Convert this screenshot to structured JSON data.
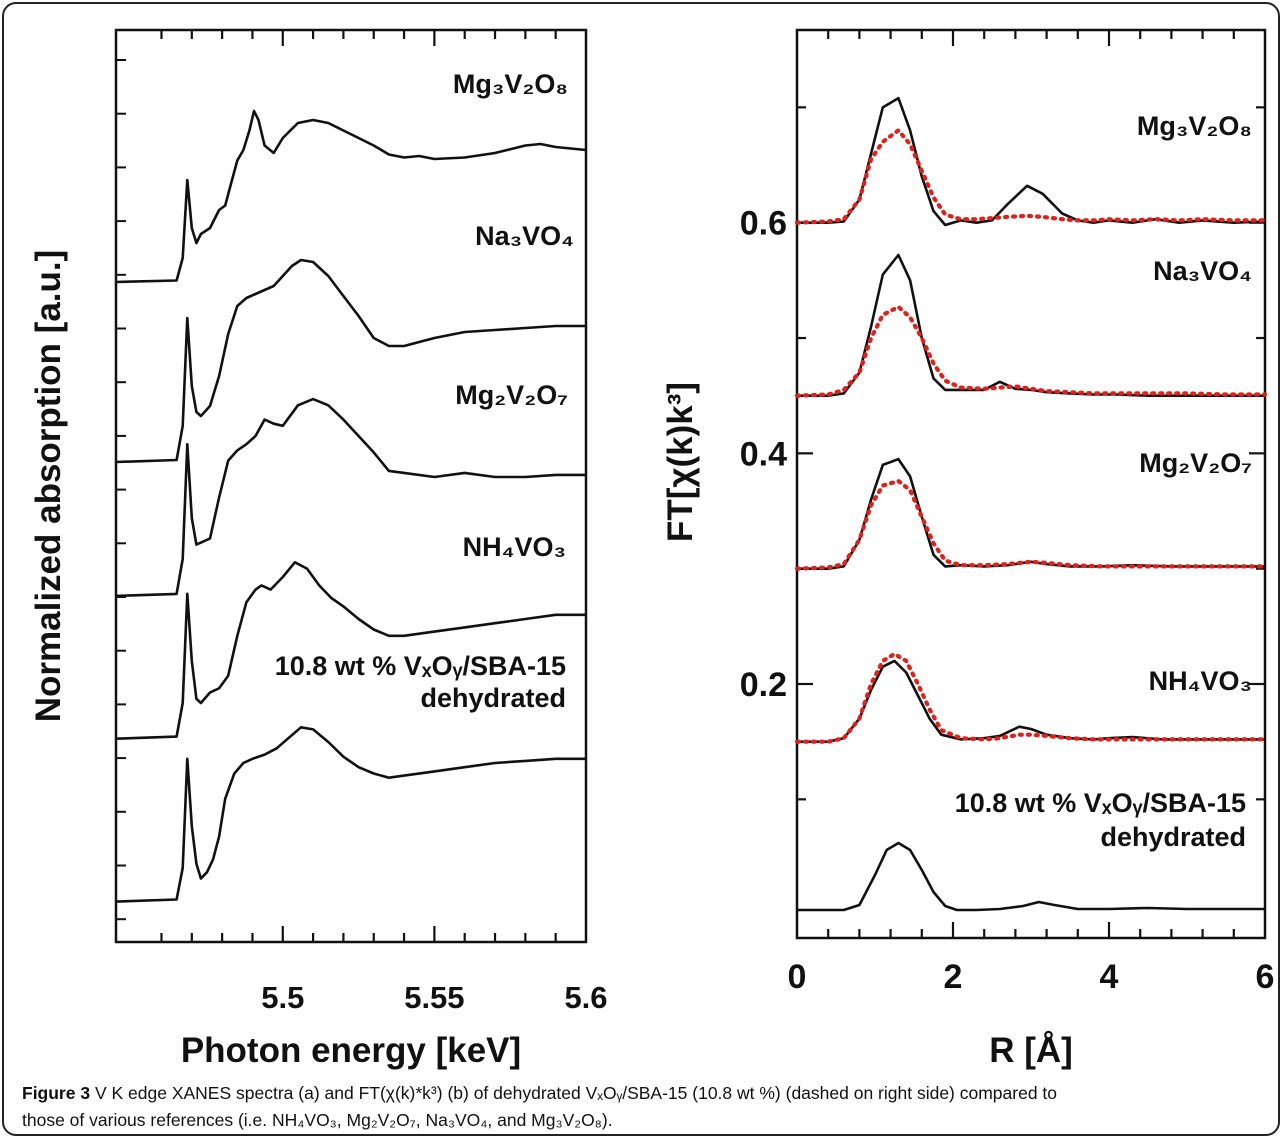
{
  "figure": {
    "caption_lead": "Figure 3",
    "caption_line1": "V K edge XANES spectra (a) and FT(χ(k)*k³) (b) of dehydrated VₓOᵧ/SBA-15 (10.8 wt %) (dashed on right side) compared to",
    "caption_line2": "those of various references (i.e. NH₄VO₃, Mg₂V₂O₇, Na₃VO₄, and Mg₃V₂O₈)."
  },
  "chart_data": [
    {
      "type": "line",
      "panel": "a",
      "xlabel": "Photon energy [keV]",
      "ylabel": "Normalized absorption [a.u.]",
      "xlim": [
        5.445,
        5.6
      ],
      "x_ticks": [
        "5.5",
        "5.55",
        "5.6"
      ],
      "x_tick_values": [
        5.5,
        5.55,
        5.6
      ],
      "y_tick_labels": false,
      "grid": false,
      "legend": "none",
      "series": [
        {
          "label": "Mg₃V₂O₈",
          "x": [
            5.445,
            5.465,
            5.467,
            5.4685,
            5.47,
            5.4715,
            5.473,
            5.476,
            5.479,
            5.481,
            5.483,
            5.485,
            5.487,
            5.489,
            5.4905,
            5.492,
            5.494,
            5.497,
            5.5,
            5.505,
            5.51,
            5.515,
            5.52,
            5.525,
            5.53,
            5.535,
            5.54,
            5.545,
            5.55,
            5.56,
            5.57,
            5.58,
            5.585,
            5.59,
            5.595,
            5.6
          ],
          "y": [
            0.04,
            0.05,
            0.2,
            0.72,
            0.4,
            0.3,
            0.36,
            0.4,
            0.52,
            0.55,
            0.7,
            0.85,
            0.92,
            1.05,
            1.18,
            1.12,
            0.95,
            0.9,
            1.0,
            1.1,
            1.12,
            1.1,
            1.05,
            1.0,
            0.95,
            0.89,
            0.87,
            0.88,
            0.86,
            0.87,
            0.9,
            0.95,
            0.96,
            0.94,
            0.93,
            0.92
          ]
        },
        {
          "label": "Na₃VO₄",
          "x": [
            5.445,
            5.465,
            5.467,
            5.4685,
            5.47,
            5.4715,
            5.473,
            5.476,
            5.479,
            5.482,
            5.485,
            5.488,
            5.491,
            5.494,
            5.497,
            5.5,
            5.503,
            5.506,
            5.51,
            5.515,
            5.52,
            5.525,
            5.53,
            5.535,
            5.54,
            5.55,
            5.56,
            5.57,
            5.58,
            5.59,
            5.6
          ],
          "y": [
            0.02,
            0.03,
            0.2,
            0.74,
            0.4,
            0.27,
            0.25,
            0.3,
            0.45,
            0.66,
            0.8,
            0.84,
            0.86,
            0.88,
            0.9,
            0.95,
            1.0,
            1.03,
            1.02,
            0.95,
            0.85,
            0.75,
            0.64,
            0.6,
            0.6,
            0.64,
            0.67,
            0.68,
            0.69,
            0.7,
            0.7
          ]
        },
        {
          "label": "Mg₂V₂O₇",
          "x": [
            5.445,
            5.465,
            5.467,
            5.4685,
            5.47,
            5.4715,
            5.473,
            5.476,
            5.479,
            5.482,
            5.485,
            5.488,
            5.491,
            5.494,
            5.497,
            5.5,
            5.505,
            5.51,
            5.515,
            5.52,
            5.525,
            5.53,
            5.535,
            5.54,
            5.55,
            5.56,
            5.57,
            5.58,
            5.59,
            5.6
          ],
          "y": [
            0.02,
            0.03,
            0.2,
            0.76,
            0.4,
            0.27,
            0.28,
            0.3,
            0.5,
            0.68,
            0.73,
            0.76,
            0.8,
            0.88,
            0.86,
            0.85,
            0.95,
            0.98,
            0.95,
            0.88,
            0.8,
            0.72,
            0.63,
            0.62,
            0.6,
            0.62,
            0.6,
            0.6,
            0.61,
            0.61
          ]
        },
        {
          "label": "NH₄VO₃",
          "x": [
            5.445,
            5.465,
            5.467,
            5.4685,
            5.47,
            5.4715,
            5.473,
            5.476,
            5.479,
            5.482,
            5.485,
            5.488,
            5.491,
            5.493,
            5.496,
            5.5,
            5.504,
            5.508,
            5.512,
            5.516,
            5.52,
            5.525,
            5.53,
            5.535,
            5.54,
            5.55,
            5.56,
            5.57,
            5.58,
            5.59,
            5.6
          ],
          "y": [
            0.03,
            0.04,
            0.2,
            0.72,
            0.4,
            0.22,
            0.2,
            0.25,
            0.27,
            0.33,
            0.52,
            0.68,
            0.74,
            0.76,
            0.74,
            0.8,
            0.87,
            0.84,
            0.76,
            0.7,
            0.66,
            0.6,
            0.55,
            0.52,
            0.52,
            0.54,
            0.56,
            0.58,
            0.6,
            0.62,
            0.62
          ]
        },
        {
          "label": "10.8 wt % VₓOᵧ/SBA-15 dehydrated",
          "x": [
            5.445,
            5.465,
            5.467,
            5.4685,
            5.47,
            5.4715,
            5.473,
            5.475,
            5.477,
            5.479,
            5.481,
            5.484,
            5.487,
            5.49,
            5.494,
            5.498,
            5.502,
            5.506,
            5.51,
            5.515,
            5.52,
            5.525,
            5.53,
            5.535,
            5.54,
            5.55,
            5.56,
            5.57,
            5.58,
            5.59,
            5.6
          ],
          "y": [
            0.04,
            0.05,
            0.2,
            0.72,
            0.4,
            0.22,
            0.15,
            0.18,
            0.24,
            0.35,
            0.53,
            0.65,
            0.7,
            0.72,
            0.74,
            0.77,
            0.82,
            0.87,
            0.86,
            0.8,
            0.73,
            0.68,
            0.65,
            0.63,
            0.64,
            0.66,
            0.68,
            0.7,
            0.71,
            0.72,
            0.72
          ]
        }
      ]
    },
    {
      "type": "line",
      "panel": "b",
      "xlabel": "R [Å]",
      "ylabel": "FT[χ(k)k³]",
      "xlim": [
        0,
        6
      ],
      "ylim": [
        0,
        0.8
      ],
      "x_ticks": [
        0,
        2,
        4,
        6
      ],
      "y_ticks": [
        0.2,
        0.4,
        0.6
      ],
      "grid": false,
      "legend": "none",
      "series": [
        {
          "label": "Mg₃V₂O₈",
          "x": [
            0,
            0.4,
            0.6,
            0.8,
            0.95,
            1.1,
            1.3,
            1.45,
            1.6,
            1.75,
            1.9,
            2.1,
            2.3,
            2.5,
            2.7,
            2.95,
            3.15,
            3.4,
            3.6,
            3.8,
            4.0,
            4.3,
            4.6,
            4.9,
            5.2,
            5.6,
            6.0
          ],
          "y": [
            0.6,
            0.6,
            0.601,
            0.62,
            0.66,
            0.7,
            0.708,
            0.68,
            0.64,
            0.61,
            0.598,
            0.602,
            0.6,
            0.602,
            0.616,
            0.632,
            0.625,
            0.608,
            0.602,
            0.6,
            0.602,
            0.6,
            0.603,
            0.6,
            0.602,
            0.6,
            0.601
          ]
        },
        {
          "label": "Mg₃V₂O₈ dehydrated",
          "dashed": true,
          "x": [
            0,
            0.4,
            0.6,
            0.8,
            0.95,
            1.1,
            1.3,
            1.45,
            1.6,
            1.75,
            1.9,
            2.1,
            2.3,
            2.5,
            2.7,
            2.95,
            3.15,
            3.4,
            3.6,
            3.8,
            4.0,
            4.3,
            4.6,
            4.9,
            5.2,
            5.6,
            6.0
          ],
          "y": [
            0.6,
            0.601,
            0.603,
            0.62,
            0.655,
            0.67,
            0.68,
            0.668,
            0.645,
            0.622,
            0.607,
            0.603,
            0.603,
            0.604,
            0.605,
            0.606,
            0.605,
            0.603,
            0.602,
            0.602,
            0.603,
            0.602,
            0.603,
            0.602,
            0.603,
            0.602,
            0.602
          ]
        },
        {
          "label": "Na₃VO₄",
          "x": [
            0,
            0.4,
            0.6,
            0.8,
            0.95,
            1.1,
            1.3,
            1.45,
            1.6,
            1.75,
            1.9,
            2.1,
            2.4,
            2.6,
            2.8,
            3.0,
            3.2,
            3.5,
            3.8,
            4.1,
            4.5,
            5.0,
            5.5,
            6.0
          ],
          "y": [
            0.45,
            0.45,
            0.452,
            0.47,
            0.51,
            0.555,
            0.572,
            0.55,
            0.5,
            0.465,
            0.455,
            0.455,
            0.455,
            0.462,
            0.456,
            0.455,
            0.453,
            0.452,
            0.451,
            0.451,
            0.45,
            0.45,
            0.45,
            0.45
          ]
        },
        {
          "label": "Na₃VO₄ dehydrated",
          "dashed": true,
          "x": [
            0,
            0.4,
            0.6,
            0.8,
            0.95,
            1.1,
            1.3,
            1.45,
            1.6,
            1.75,
            1.9,
            2.1,
            2.4,
            2.6,
            2.8,
            3.0,
            3.2,
            3.5,
            3.8,
            4.1,
            4.5,
            5.0,
            5.5,
            6.0
          ],
          "y": [
            0.45,
            0.451,
            0.455,
            0.47,
            0.5,
            0.52,
            0.527,
            0.518,
            0.5,
            0.478,
            0.463,
            0.457,
            0.456,
            0.457,
            0.458,
            0.456,
            0.454,
            0.453,
            0.452,
            0.452,
            0.452,
            0.452,
            0.451,
            0.451
          ]
        },
        {
          "label": "Mg₂V₂O₇",
          "x": [
            0,
            0.4,
            0.6,
            0.8,
            0.95,
            1.1,
            1.3,
            1.45,
            1.6,
            1.75,
            1.9,
            2.1,
            2.4,
            2.7,
            3.0,
            3.2,
            3.5,
            3.9,
            4.3,
            4.8,
            5.3,
            6.0
          ],
          "y": [
            0.3,
            0.3,
            0.302,
            0.325,
            0.36,
            0.39,
            0.395,
            0.38,
            0.345,
            0.312,
            0.302,
            0.303,
            0.302,
            0.303,
            0.306,
            0.304,
            0.302,
            0.302,
            0.303,
            0.302,
            0.302,
            0.302
          ]
        },
        {
          "label": "Mg₂V₂O₇ dehydrated",
          "dashed": true,
          "x": [
            0,
            0.4,
            0.6,
            0.8,
            0.95,
            1.1,
            1.3,
            1.45,
            1.6,
            1.75,
            1.9,
            2.1,
            2.4,
            2.7,
            3.0,
            3.2,
            3.5,
            3.9,
            4.3,
            4.8,
            5.3,
            6.0
          ],
          "y": [
            0.3,
            0.301,
            0.304,
            0.325,
            0.355,
            0.372,
            0.376,
            0.368,
            0.345,
            0.322,
            0.307,
            0.303,
            0.303,
            0.304,
            0.306,
            0.305,
            0.303,
            0.302,
            0.302,
            0.302,
            0.302,
            0.302
          ]
        },
        {
          "label": "NH₄VO₃",
          "x": [
            0,
            0.4,
            0.6,
            0.8,
            0.95,
            1.1,
            1.25,
            1.4,
            1.55,
            1.7,
            1.85,
            2.1,
            2.4,
            2.6,
            2.85,
            3.0,
            3.2,
            3.5,
            3.8,
            4.0,
            4.3,
            4.7,
            5.2,
            6.0
          ],
          "y": [
            0.15,
            0.15,
            0.153,
            0.17,
            0.195,
            0.215,
            0.22,
            0.21,
            0.19,
            0.17,
            0.156,
            0.152,
            0.153,
            0.155,
            0.163,
            0.161,
            0.156,
            0.153,
            0.152,
            0.153,
            0.154,
            0.152,
            0.152,
            0.152
          ]
        },
        {
          "label": "NH₄VO₃ dehydrated",
          "dashed": true,
          "x": [
            0,
            0.4,
            0.6,
            0.8,
            0.95,
            1.1,
            1.25,
            1.4,
            1.55,
            1.7,
            1.85,
            2.1,
            2.4,
            2.6,
            2.85,
            3.0,
            3.2,
            3.5,
            3.8,
            4.0,
            4.3,
            4.7,
            5.2,
            6.0
          ],
          "y": [
            0.15,
            0.15,
            0.153,
            0.17,
            0.2,
            0.22,
            0.226,
            0.22,
            0.2,
            0.178,
            0.16,
            0.153,
            0.152,
            0.153,
            0.156,
            0.156,
            0.155,
            0.153,
            0.152,
            0.152,
            0.152,
            0.152,
            0.152,
            0.152
          ]
        },
        {
          "label": "10.8 wt % VₓOᵧ/SBA-15 dehydrated",
          "x": [
            0,
            0.4,
            0.6,
            0.8,
            1.0,
            1.15,
            1.3,
            1.45,
            1.6,
            1.75,
            1.9,
            2.05,
            2.3,
            2.6,
            2.9,
            3.1,
            3.3,
            3.6,
            4.0,
            4.5,
            5.0,
            5.5,
            6.0
          ],
          "y": [
            0.01,
            0.01,
            0.01,
            0.015,
            0.045,
            0.07,
            0.077,
            0.07,
            0.05,
            0.028,
            0.014,
            0.01,
            0.01,
            0.011,
            0.014,
            0.018,
            0.015,
            0.011,
            0.011,
            0.012,
            0.011,
            0.011,
            0.011
          ]
        }
      ]
    }
  ]
}
